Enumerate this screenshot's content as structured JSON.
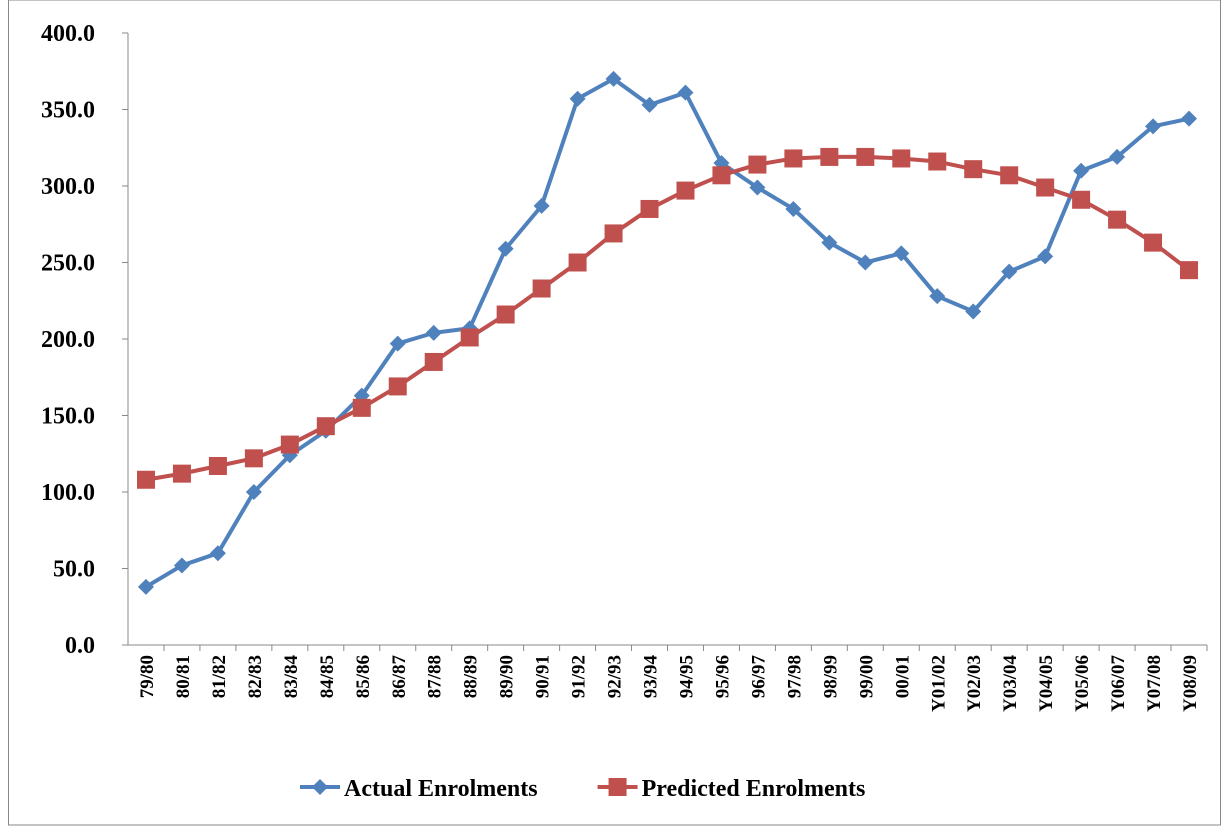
{
  "chart_data": {
    "type": "line",
    "categories": [
      "79/80",
      "80/81",
      "81/82",
      "82/83",
      "83/84",
      "84/85",
      "85/86",
      "86/87",
      "87/88",
      "88/89",
      "89/90",
      "90/91",
      "91/92",
      "92/93",
      "93/94",
      "94/95",
      "95/96",
      "96/97",
      "97/98",
      "98/99",
      "99/00",
      "00/01",
      "Y01/02",
      "Y02/03",
      "Y03/04",
      "Y04/05",
      "Y05/06",
      "Y06/07",
      "Y07/08",
      "Y08/09"
    ],
    "series": [
      {
        "name": "Actual Enrolments",
        "color": "#4f81bd",
        "marker": "diamond",
        "values": [
          38,
          52,
          60,
          100,
          124,
          140,
          163,
          197,
          204,
          207,
          259,
          287,
          357,
          370,
          353,
          361,
          315,
          299,
          285,
          263,
          250,
          256,
          228,
          218,
          244,
          254,
          310,
          319,
          339,
          344
        ]
      },
      {
        "name": "Predicted Enrolments",
        "color": "#c0504d",
        "marker": "square",
        "values": [
          108,
          112,
          117,
          122,
          131,
          143,
          155,
          169,
          185,
          201,
          216,
          233,
          250,
          269,
          285,
          297,
          307,
          314,
          318,
          319,
          319,
          318,
          316,
          311,
          307,
          299,
          291,
          278,
          263,
          245
        ]
      }
    ],
    "ylim": [
      0,
      400
    ],
    "yticks": [
      {
        "value": 0,
        "label": "0.0"
      },
      {
        "value": 50,
        "label": "50.0"
      },
      {
        "value": 100,
        "label": "100.0"
      },
      {
        "value": 150,
        "label": "150.0"
      },
      {
        "value": 200,
        "label": "200.0"
      },
      {
        "value": 250,
        "label": "250.0"
      },
      {
        "value": 300,
        "label": "300.0"
      },
      {
        "value": 350,
        "label": "350.0"
      },
      {
        "value": 400,
        "label": "400.0"
      }
    ],
    "grid": false,
    "legend": "bottom"
  }
}
